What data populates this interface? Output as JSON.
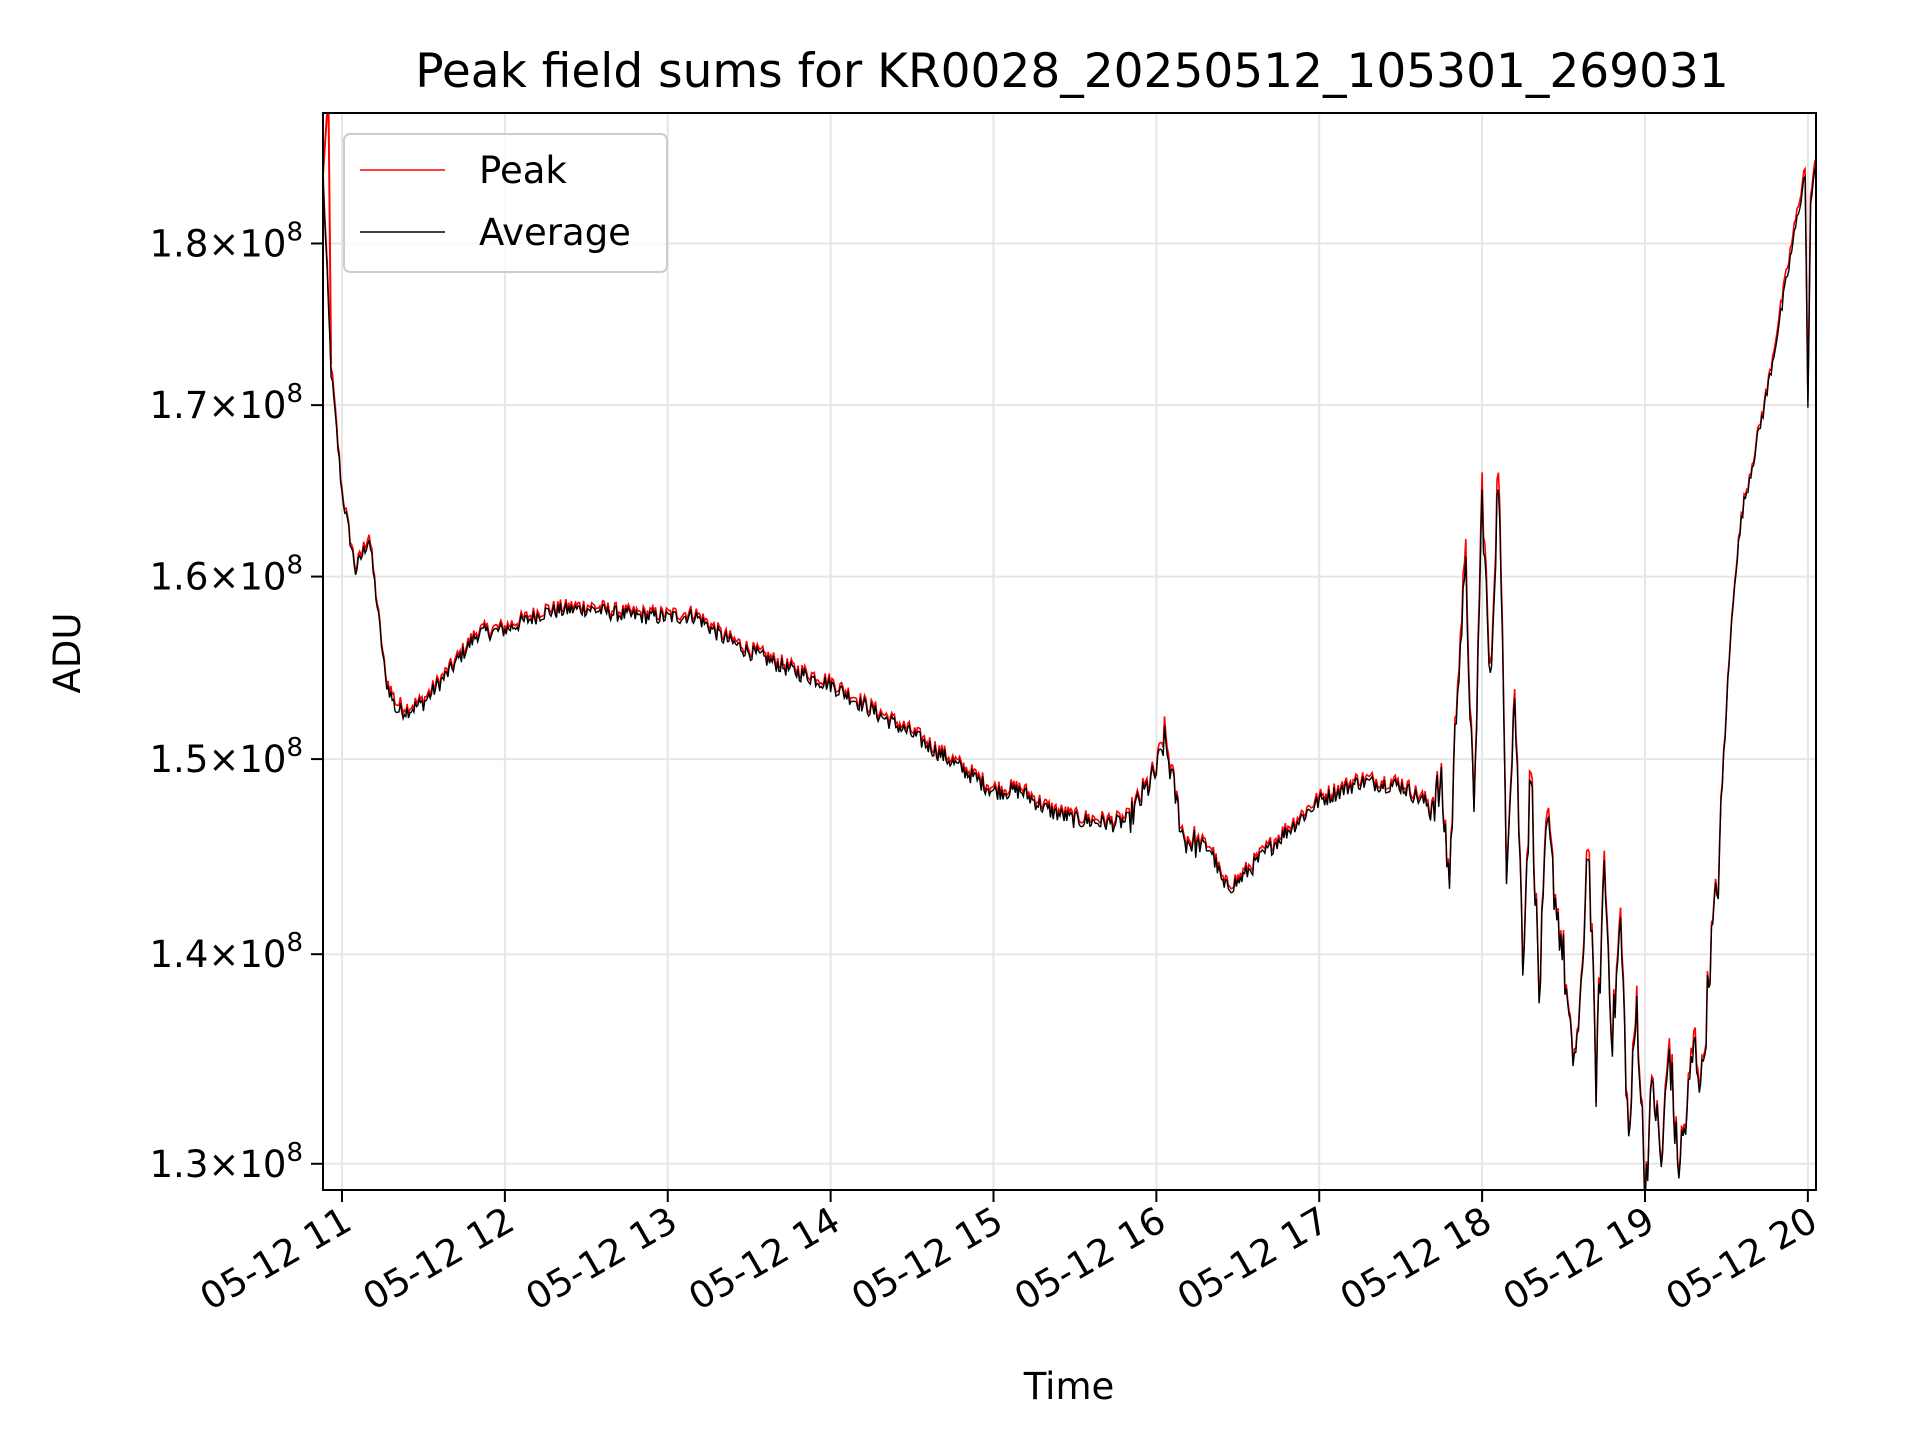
{
  "chart_data": {
    "type": "line",
    "title": "Peak field sums for KR0028_20250512_105301_269031",
    "xlabel": "Time",
    "ylabel": "ADU",
    "y_scale": "log",
    "xlim": [
      "2025-05-12 10:53",
      "2025-05-12 20:03"
    ],
    "ylim": [
      128800000,
      188500000
    ],
    "grid": true,
    "legend_position": "upper-left",
    "x_ticks": [
      "2025-05-12 11:00",
      "2025-05-12 12:00",
      "2025-05-12 13:00",
      "2025-05-12 14:00",
      "2025-05-12 15:00",
      "2025-05-12 16:00",
      "2025-05-12 17:00",
      "2025-05-12 18:00",
      "2025-05-12 19:00",
      "2025-05-12 20:00"
    ],
    "x_tick_labels": [
      "05-12 11",
      "05-12 12",
      "05-12 13",
      "05-12 14",
      "05-12 15",
      "05-12 16",
      "05-12 17",
      "05-12 18",
      "05-12 19",
      "05-12 20"
    ],
    "y_ticks": [
      {
        "value": 130000000,
        "mantissa": "1.3",
        "exponent": "8"
      },
      {
        "value": 140000000,
        "mantissa": "1.4",
        "exponent": "8"
      },
      {
        "value": 150000000,
        "mantissa": "1.5",
        "exponent": "8"
      },
      {
        "value": 160000000,
        "mantissa": "1.6",
        "exponent": "8"
      },
      {
        "value": 170000000,
        "mantissa": "1.7",
        "exponent": "8"
      },
      {
        "value": 180000000,
        "mantissa": "1.8",
        "exponent": "8"
      }
    ],
    "series": [
      {
        "name": "Peak",
        "color": "#ff0000"
      },
      {
        "name": "Average",
        "color": "#000000"
      }
    ],
    "x": [
      "10:53",
      "10:56",
      "11:00",
      "11:05",
      "11:10",
      "11:13",
      "11:16",
      "11:20",
      "11:24",
      "11:30",
      "11:40",
      "11:50",
      "12:00",
      "12:15",
      "12:30",
      "12:45",
      "13:00",
      "13:10",
      "13:20",
      "13:30",
      "13:45",
      "14:00",
      "14:15",
      "14:30",
      "14:45",
      "15:00",
      "15:10",
      "15:20",
      "15:30",
      "15:45",
      "15:50",
      "15:56",
      "16:00",
      "16:03",
      "16:06",
      "16:10",
      "16:20",
      "16:25",
      "16:30",
      "16:45",
      "17:00",
      "17:15",
      "17:30",
      "17:40",
      "17:45",
      "17:48",
      "17:51",
      "17:54",
      "17:57",
      "18:00",
      "18:03",
      "18:06",
      "18:09",
      "18:12",
      "18:15",
      "18:18",
      "18:21",
      "18:24",
      "18:27",
      "18:30",
      "18:33",
      "18:36",
      "18:39",
      "18:42",
      "18:45",
      "18:48",
      "18:51",
      "18:54",
      "18:57",
      "19:00",
      "19:03",
      "19:06",
      "19:09",
      "19:12",
      "19:15",
      "19:18",
      "19:21",
      "19:24",
      "19:27",
      "19:30",
      "19:33",
      "19:36",
      "19:40",
      "19:45",
      "19:50",
      "19:55",
      "19:58",
      "19:59",
      "20:00",
      "20:01",
      "20:03"
    ],
    "peak": [
      184500000,
      172500000,
      165000000,
      160500000,
      162500000,
      158500000,
      154500000,
      153000000,
      152800000,
      153200000,
      155000000,
      157000000,
      157200000,
      158200000,
      158400000,
      158000000,
      157900000,
      158000000,
      156800000,
      156000000,
      155000000,
      154200000,
      152800000,
      151500000,
      150000000,
      148500000,
      148500000,
      147500000,
      147000000,
      146800000,
      147000000,
      148500000,
      149500000,
      151500000,
      149000000,
      146000000,
      145500000,
      143500000,
      143800000,
      146000000,
      148000000,
      149000000,
      148800000,
      147800000,
      148500000,
      143800000,
      155000000,
      161000000,
      146500000,
      165500000,
      154000000,
      167000000,
      145000000,
      154000000,
      140000000,
      150000000,
      138000000,
      147000000,
      143000000,
      140000000,
      135000000,
      136500000,
      146500000,
      134000000,
      145000000,
      136000000,
      142000000,
      131000000,
      138000000,
      129000000,
      134000000,
      130000000,
      136000000,
      130000000,
      132000000,
      136000000,
      134000000,
      140000000,
      144000000,
      153000000,
      160000000,
      164000000,
      167000000,
      171000000,
      176000000,
      181000000,
      184000000,
      185000000,
      170000000,
      183000000,
      185500000
    ],
    "average": [
      184000000,
      172000000,
      164800000,
      160300000,
      162200000,
      158300000,
      154300000,
      152600000,
      152600000,
      153000000,
      154800000,
      156800000,
      157000000,
      158000000,
      158200000,
      157800000,
      157700000,
      157800000,
      156600000,
      155800000,
      154800000,
      154000000,
      152600000,
      151300000,
      149800000,
      148300000,
      148300000,
      147300000,
      146800000,
      146600000,
      146800000,
      148300000,
      149300000,
      151000000,
      148800000,
      145800000,
      145300000,
      143300000,
      143600000,
      145800000,
      147800000,
      148800000,
      148600000,
      147600000,
      148300000,
      143600000,
      154500000,
      160000000,
      146300000,
      164500000,
      153500000,
      166000000,
      144800000,
      153500000,
      139800000,
      149500000,
      137800000,
      146500000,
      142800000,
      139800000,
      134800000,
      136300000,
      146000000,
      133800000,
      144500000,
      135800000,
      141500000,
      130800000,
      137500000,
      128900000,
      133800000,
      129800000,
      135500000,
      129800000,
      131800000,
      135500000,
      133800000,
      139800000,
      143800000,
      152800000,
      159800000,
      163800000,
      166800000,
      170800000,
      175500000,
      180500000,
      183500000,
      184500000,
      169500000,
      182500000,
      185000000
    ],
    "peak_spike": {
      "x": "10:55",
      "y": 188500000
    }
  }
}
